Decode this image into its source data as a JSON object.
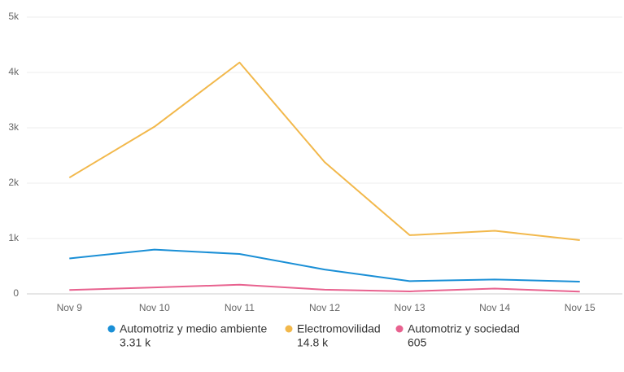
{
  "chart_data": {
    "type": "line",
    "categories": [
      "Nov 9",
      "Nov 10",
      "Nov 11",
      "Nov 12",
      "Nov 13",
      "Nov 14",
      "Nov 15"
    ],
    "ylim": [
      0,
      5000
    ],
    "yticks": [
      0,
      {
        "value": 1000,
        "label": "1k"
      },
      {
        "value": 2000,
        "label": "2k"
      },
      {
        "value": 3000,
        "label": "3k"
      },
      {
        "value": 4000,
        "label": "4k"
      },
      {
        "value": 5000,
        "label": "5k"
      }
    ],
    "grid": true,
    "series": [
      {
        "name": "Automotriz y medio ambiente",
        "color": "#1a8fd6",
        "values": [
          640,
          800,
          720,
          440,
          230,
          260,
          220
        ],
        "total": 3310,
        "total_label": "3.31 k"
      },
      {
        "name": "Electromovilidad",
        "color": "#f2b84b",
        "values": [
          2100,
          3020,
          4180,
          2380,
          1060,
          1140,
          970
        ],
        "total": 14800,
        "total_label": "14.8 k"
      },
      {
        "name": "Automotriz y sociedad",
        "color": "#e8628f",
        "values": [
          70,
          115,
          165,
          75,
          45,
          95,
          40
        ],
        "total": 605
      }
    ]
  }
}
